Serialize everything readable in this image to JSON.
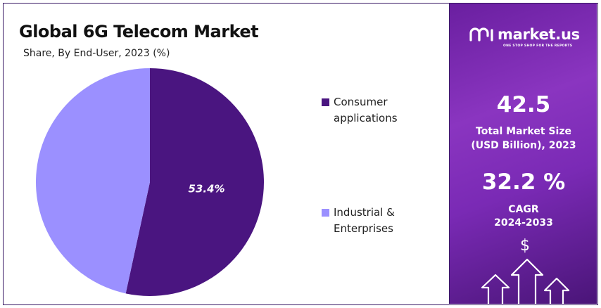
{
  "header": {
    "title": "Global 6G Telecom Market",
    "subtitle": "Share, By End-User, 2023 (%)"
  },
  "chart_data": {
    "type": "pie",
    "categories": [
      "Consumer applications",
      "Industrial & Enterprises"
    ],
    "values": [
      53.4,
      46.6
    ],
    "colors": [
      "#4a1580",
      "#9b90ff"
    ],
    "data_labels": [
      "53.4%",
      ""
    ],
    "legend_position": "right",
    "unit": "%"
  },
  "legend": {
    "items": [
      {
        "line1": "Consumer",
        "line2": "applications",
        "color": "#4a1580"
      },
      {
        "line1": "Industrial &",
        "line2": "Enterprises",
        "color": "#9b90ff"
      }
    ]
  },
  "side_panel": {
    "brand_name": "market.us",
    "brand_tagline": "ONE STOP SHOP FOR THE REPORTS",
    "market_size_value": "42.5",
    "market_size_label_line1": "Total Market Size",
    "market_size_label_line2": "(USD Billion), 2023",
    "cagr_value": "32.2 %",
    "cagr_label_line1": "CAGR",
    "cagr_label_line2": "2024-2033",
    "currency_symbol": "$",
    "icons": [
      "logo-icon",
      "upward-arrows-icon"
    ]
  }
}
